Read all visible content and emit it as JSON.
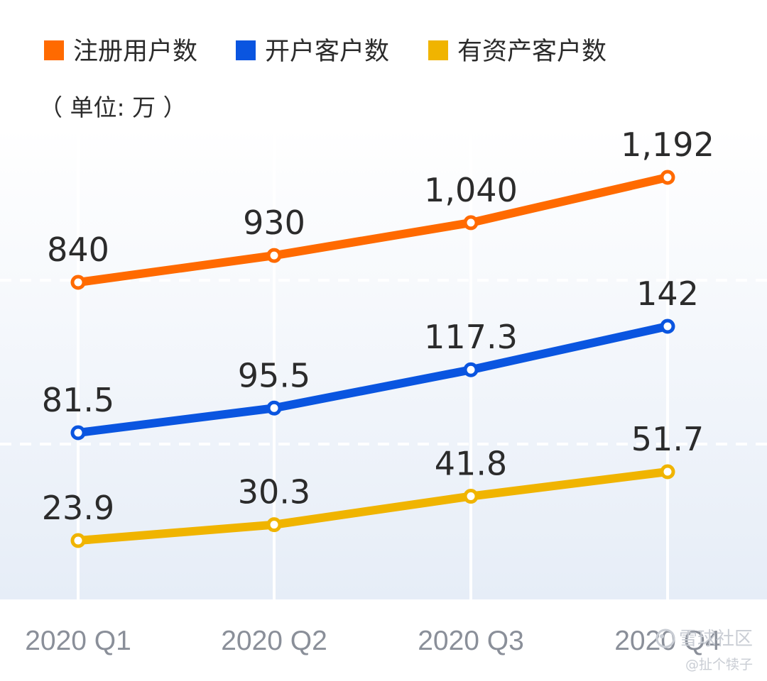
{
  "legend": {
    "items": [
      {
        "label": "注册用户数",
        "color": "#FF6A00"
      },
      {
        "label": "开户客户数",
        "color": "#0A55E0"
      },
      {
        "label": "有资产客户数",
        "color": "#F0B400"
      }
    ]
  },
  "unit_label": "（ 单位: 万 ）",
  "watermark": {
    "line1": "雪球社区",
    "line2": "@扯个犊子"
  },
  "chart_data": {
    "type": "line",
    "categories": [
      "2020 Q1",
      "2020 Q2",
      "2020 Q3",
      "2020 Q4"
    ],
    "series": [
      {
        "name": "注册用户数",
        "color": "#FF6A00",
        "values": [
          840,
          930,
          1040,
          1192
        ],
        "labels": [
          "840",
          "930",
          "1,040",
          "1,192"
        ]
      },
      {
        "name": "开户客户数",
        "color": "#0A55E0",
        "values": [
          81.5,
          95.5,
          117.3,
          142
        ],
        "labels": [
          "81.5",
          "95.5",
          "117.3",
          "142"
        ]
      },
      {
        "name": "有资产客户数",
        "color": "#F0B400",
        "values": [
          23.9,
          30.3,
          41.8,
          51.7
        ],
        "labels": [
          "23.9",
          "30.3",
          "41.8",
          "51.7"
        ]
      }
    ],
    "title": "",
    "xlabel": "",
    "ylabel": "",
    "grid": true,
    "legend_position": "top-left"
  }
}
